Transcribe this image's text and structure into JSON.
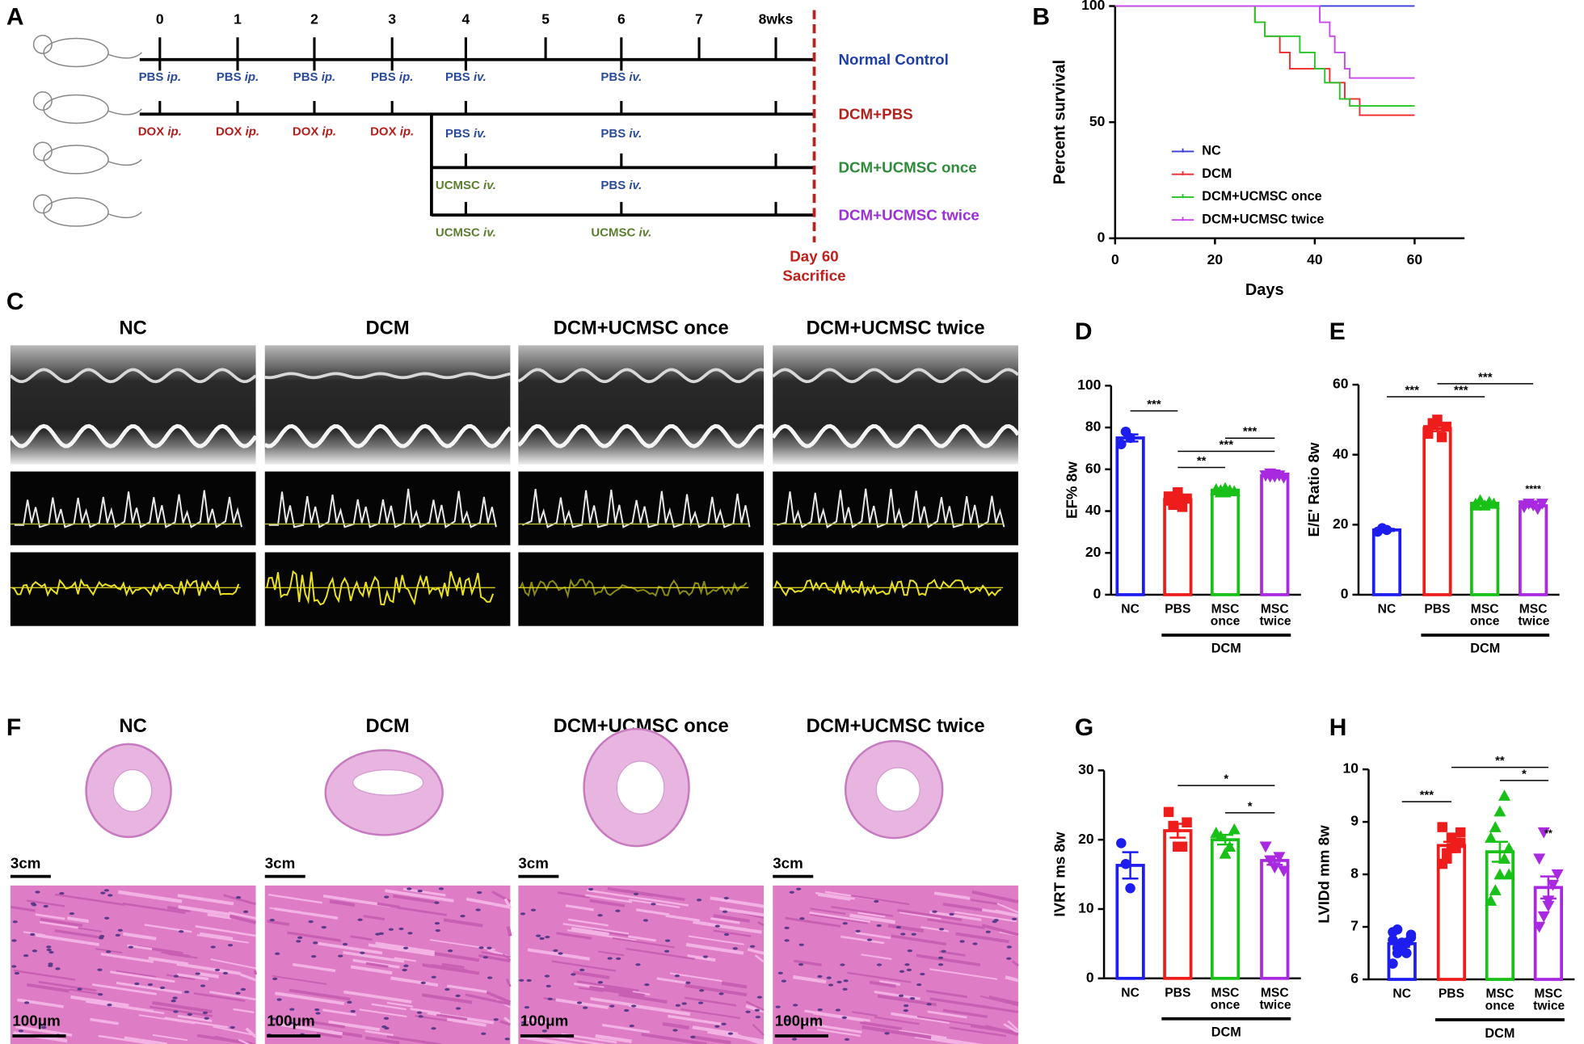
{
  "timeline": {
    "panel": "A",
    "weeks": [
      "0",
      "1",
      "2",
      "3",
      "4",
      "5",
      "6",
      "7",
      "8wks"
    ],
    "groups": [
      {
        "name": "Normal Control",
        "color": "#1f3fa8"
      },
      {
        "name": "DCM+PBS",
        "color": "#b3201c"
      },
      {
        "name": "DCM+UCMSC once",
        "color": "#2e8b3a"
      },
      {
        "name": "DCM+UCMSC twice",
        "color": "#9b30d9"
      }
    ],
    "agents": {
      "PBS": "#2b4c9b",
      "DOX": "#b3201c",
      "UCMSC": "#5b7f2e"
    },
    "labels": [
      {
        "agent": "PBS",
        "route": "ip.",
        "week": 0,
        "line": 0,
        "side": "below"
      },
      {
        "agent": "PBS",
        "route": "ip.",
        "week": 1,
        "line": 0,
        "side": "below"
      },
      {
        "agent": "PBS",
        "route": "ip.",
        "week": 2,
        "line": 0,
        "side": "below"
      },
      {
        "agent": "PBS",
        "route": "ip.",
        "week": 3,
        "line": 0,
        "side": "below"
      },
      {
        "agent": "PBS",
        "route": "iv.",
        "week": 4,
        "line": 0,
        "side": "below"
      },
      {
        "agent": "PBS",
        "route": "iv.",
        "week": 6,
        "line": 0,
        "side": "below"
      },
      {
        "agent": "DOX",
        "route": "ip.",
        "week": 0,
        "line": 1,
        "side": "below"
      },
      {
        "agent": "DOX",
        "route": "ip.",
        "week": 1,
        "line": 1,
        "side": "below"
      },
      {
        "agent": "DOX",
        "route": "ip.",
        "week": 2,
        "line": 1,
        "side": "below"
      },
      {
        "agent": "DOX",
        "route": "ip.",
        "week": 3,
        "line": 1,
        "side": "below"
      },
      {
        "agent": "PBS",
        "route": "iv.",
        "week": 4,
        "line": 2,
        "side": "above"
      },
      {
        "agent": "PBS",
        "route": "iv.",
        "week": 6,
        "line": 2,
        "side": "above"
      },
      {
        "agent": "UCMSC",
        "route": "iv.",
        "week": 4,
        "line": 2,
        "side": "below"
      },
      {
        "agent": "PBS",
        "route": "iv.",
        "week": 6,
        "line": 2,
        "side": "below"
      },
      {
        "agent": "UCMSC",
        "route": "iv.",
        "week": 4,
        "line": 3,
        "side": "below"
      },
      {
        "agent": "UCMSC",
        "route": "iv.",
        "week": 6,
        "line": 3,
        "side": "below"
      }
    ],
    "endpoint": [
      "Day 60",
      "Sacrifice"
    ],
    "endpoint_color": "#c0201c"
  },
  "chart_data": [
    {
      "type": "step",
      "panel": "B",
      "xlabel": "Days",
      "ylabel": "Percent survival",
      "xlim": [
        0,
        70
      ],
      "xticks": [
        0,
        20,
        40,
        60
      ],
      "ylim": [
        0,
        100
      ],
      "yticks": [
        0,
        50,
        100
      ],
      "series": [
        {
          "name": "NC",
          "color": "#3b3bdc",
          "x": [
            0,
            60
          ],
          "values": [
            100,
            100
          ]
        },
        {
          "name": "DCM",
          "color": "#ee2a2a",
          "x": [
            0,
            28,
            30,
            33,
            35,
            40,
            43,
            46,
            49,
            60
          ],
          "values": [
            100,
            93,
            87,
            80,
            73,
            73,
            67,
            60,
            53,
            53
          ]
        },
        {
          "name": "DCM+UCMSC once",
          "color": "#27c427",
          "x": [
            0,
            28,
            30,
            37,
            40,
            42,
            45,
            47,
            60
          ],
          "values": [
            100,
            93,
            87,
            80,
            73,
            67,
            60,
            57,
            57
          ]
        },
        {
          "name": "DCM+UCMSC twice",
          "color": "#c847ee",
          "x": [
            0,
            41,
            43,
            44,
            46,
            47,
            60
          ],
          "values": [
            100,
            93,
            87,
            80,
            73,
            69,
            69
          ]
        }
      ]
    },
    {
      "type": "bar",
      "panel": "D",
      "ylabel": "EF% 8w",
      "ylim": [
        0,
        100
      ],
      "yticks": [
        0,
        20,
        40,
        60,
        80,
        100
      ],
      "categories": [
        "NC",
        "PBS",
        "MSC once",
        "MSC twice"
      ],
      "colors": [
        "#1d1df0",
        "#ef1c1c",
        "#18c018",
        "#a829e0"
      ],
      "values": [
        75,
        45.5,
        50,
        57
      ],
      "errors": [
        1.7,
        0.9,
        0.3,
        0.2
      ],
      "points": [
        [
          72,
          78,
          75
        ],
        [
          47,
          44,
          48,
          42,
          46,
          45,
          43,
          49
        ],
        [
          50,
          49,
          51,
          50,
          49.5,
          50.5,
          50,
          49
        ],
        [
          57,
          56.5,
          57.5,
          57,
          56,
          57,
          58,
          56.5
        ]
      ],
      "group": {
        "label": "DCM",
        "from": 1,
        "to": 3
      },
      "significance": [
        {
          "between": [
            0,
            1
          ],
          "label": "***"
        },
        {
          "between": [
            2,
            3
          ],
          "label": "***"
        },
        {
          "between": [
            1,
            3
          ],
          "label": "***"
        },
        {
          "between": [
            1,
            2
          ],
          "label": "**"
        }
      ],
      "notes": [
        null,
        null,
        null,
        null
      ]
    },
    {
      "type": "bar",
      "panel": "E",
      "ylabel": "E/E' Ratio 8w",
      "ylim": [
        0,
        60
      ],
      "yticks": [
        0,
        20,
        40,
        60
      ],
      "categories": [
        "NC",
        "PBS",
        "MSC once",
        "MSC twice"
      ],
      "colors": [
        "#1d1df0",
        "#ef1c1c",
        "#18c018",
        "#a829e0"
      ],
      "values": [
        18.5,
        47.5,
        26.1,
        25.4
      ],
      "errors": [
        0.3,
        0.8,
        0.3,
        0.3
      ],
      "points": [
        [
          18,
          19,
          18.5
        ],
        [
          46,
          49,
          50,
          45,
          48,
          47
        ],
        [
          26,
          27,
          25.5,
          26.5,
          26,
          25.5
        ],
        [
          25,
          26,
          25.5,
          24.5,
          26,
          25.5
        ]
      ],
      "group": {
        "label": "DCM",
        "from": 1,
        "to": 3
      },
      "significance": [
        {
          "between": [
            1,
            3
          ],
          "label": "***"
        },
        {
          "between": [
            0,
            1
          ],
          "label": "***"
        },
        {
          "between": [
            1,
            2
          ],
          "label": "***"
        }
      ],
      "notes": [
        null,
        null,
        null,
        "****"
      ]
    },
    {
      "type": "bar",
      "panel": "G",
      "ylabel": "IVRT ms 8w",
      "ylim": [
        0,
        30
      ],
      "yticks": [
        0,
        10,
        20,
        30
      ],
      "categories": [
        "NC",
        "PBS",
        "MSC once",
        "MSC twice"
      ],
      "colors": [
        "#1d1df0",
        "#ef1c1c",
        "#18c018",
        "#a829e0"
      ],
      "values": [
        16.3,
        21.3,
        20,
        17
      ],
      "errors": [
        1.9,
        1.0,
        0.7,
        0.6
      ],
      "points": [
        [
          19.5,
          16.5,
          13
        ],
        [
          24,
          22,
          19,
          19,
          22.5
        ],
        [
          21,
          20.5,
          18,
          19,
          21.5
        ],
        [
          19,
          17,
          16,
          17.5,
          15.5
        ]
      ],
      "group": {
        "label": "DCM",
        "from": 1,
        "to": 3
      },
      "significance": [
        {
          "between": [
            1,
            3
          ],
          "label": "*"
        },
        {
          "between": [
            2,
            3
          ],
          "label": "*"
        }
      ],
      "notes": [
        null,
        null,
        null,
        null
      ]
    },
    {
      "type": "bar",
      "panel": "H",
      "ylabel": "LVIDd mm 8w",
      "ylim": [
        6,
        10
      ],
      "yticks": [
        6,
        7,
        8,
        9,
        10
      ],
      "categories": [
        "NC",
        "PBS",
        "MSC once",
        "MSC twice"
      ],
      "colors": [
        "#1d1df0",
        "#ef1c1c",
        "#18c018",
        "#a829e0"
      ],
      "values": [
        6.68,
        8.55,
        8.43,
        7.75
      ],
      "errors": [
        0.06,
        0.07,
        0.19,
        0.21
      ],
      "points": [
        [
          6.3,
          6.5,
          6.6,
          6.7,
          6.8,
          6.9,
          6.6,
          6.7,
          6.5,
          6.85,
          6.75,
          6.95
        ],
        [
          8.2,
          8.4,
          8.5,
          8.6,
          8.8,
          8.9,
          8.3,
          8.7,
          8.5,
          8.6
        ],
        [
          7.5,
          7.7,
          8.0,
          8.3,
          8.5,
          8.7,
          8.9,
          9.2,
          9.5,
          8.0
        ],
        [
          7.0,
          7.2,
          7.5,
          7.8,
          8.0,
          8.3,
          8.8,
          7.4
        ]
      ],
      "group": {
        "label": "DCM",
        "from": 1,
        "to": 3
      },
      "significance": [
        {
          "between": [
            1,
            3
          ],
          "label": "**"
        },
        {
          "between": [
            2,
            3
          ],
          "label": "*"
        },
        {
          "between": [
            0,
            1
          ],
          "label": "***"
        }
      ],
      "notes": [
        null,
        null,
        null,
        "**"
      ]
    }
  ],
  "echo": {
    "panel": "C",
    "titles": [
      "NC",
      "DCM",
      "DCM+UCMSC once",
      "DCM+UCMSC twice"
    ]
  },
  "histology": {
    "panel": "F",
    "titles": [
      "NC",
      "DCM",
      "DCM+UCMSC once",
      "DCM+UCMSC twice"
    ],
    "heart_scale": "3cm",
    "tissue_scale": "100μm"
  }
}
